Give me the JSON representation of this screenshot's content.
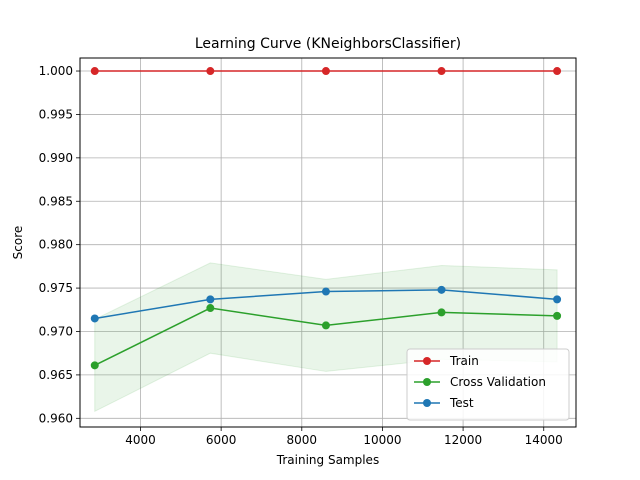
{
  "chart_data": {
    "type": "line",
    "title": "Learning Curve (KNeighborsClassifier)",
    "xlabel": "Training Samples",
    "ylabel": "Score",
    "xlim": [
      2500,
      14800
    ],
    "ylim": [
      0.959,
      1.0015
    ],
    "grid": true,
    "legend_position": "lower-right",
    "x_ticks": [
      4000,
      6000,
      8000,
      10000,
      12000,
      14000
    ],
    "x_tick_labels": [
      "4000",
      "6000",
      "8000",
      "10000",
      "12000",
      "14000"
    ],
    "y_ticks": [
      0.96,
      0.965,
      0.97,
      0.975,
      0.98,
      0.985,
      0.99,
      0.995,
      1.0
    ],
    "y_tick_labels": [
      "0.960",
      "0.965",
      "0.970",
      "0.975",
      "0.980",
      "0.985",
      "0.990",
      "0.995",
      "1.000"
    ],
    "x": [
      2866,
      5732,
      8599,
      11465,
      14331
    ],
    "series": [
      {
        "name": "Train",
        "color": "#d62728",
        "values": [
          1.0,
          1.0,
          1.0,
          1.0,
          1.0
        ]
      },
      {
        "name": "Cross Validation",
        "color": "#2ca02c",
        "values": [
          0.9661,
          0.9727,
          0.9707,
          0.9722,
          0.9718
        ],
        "band_lower": [
          0.9608,
          0.9675,
          0.9654,
          0.9668,
          0.9665
        ],
        "band_upper": [
          0.9714,
          0.9779,
          0.976,
          0.9776,
          0.9771
        ]
      },
      {
        "name": "Test",
        "color": "#1f77b4",
        "values": [
          0.9715,
          0.9737,
          0.9746,
          0.9748,
          0.9737
        ]
      }
    ]
  }
}
